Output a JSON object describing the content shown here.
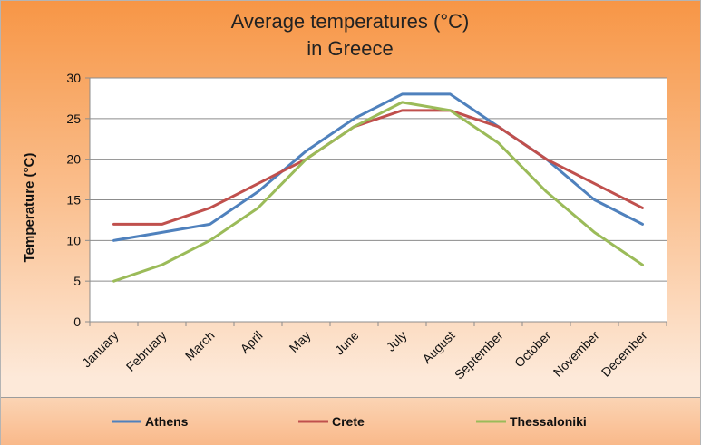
{
  "chart_data": {
    "type": "line",
    "title_lines": [
      "Average temperatures (°C)",
      "in Greece"
    ],
    "xlabel": "",
    "ylabel": "Temperature (°C)",
    "ylim": [
      0,
      30
    ],
    "yticks": [
      0,
      5,
      10,
      15,
      20,
      25,
      30
    ],
    "grid": true,
    "legend_position": "bottom",
    "categories": [
      "January",
      "February",
      "March",
      "April",
      "May",
      "June",
      "July",
      "August",
      "September",
      "October",
      "November",
      "December"
    ],
    "series": [
      {
        "name": "Athens",
        "color": "#4f81bd",
        "values": [
          10,
          11,
          12,
          16,
          21,
          25,
          28,
          28,
          24,
          20,
          15,
          12
        ]
      },
      {
        "name": "Crete",
        "color": "#c0504d",
        "values": [
          12,
          12,
          14,
          17,
          20,
          24,
          26,
          26,
          24,
          20,
          17,
          14
        ]
      },
      {
        "name": "Thessaloniki",
        "color": "#9bbb59",
        "values": [
          5,
          7,
          10,
          14,
          20,
          24,
          27,
          26,
          22,
          16,
          11,
          7
        ]
      }
    ]
  }
}
